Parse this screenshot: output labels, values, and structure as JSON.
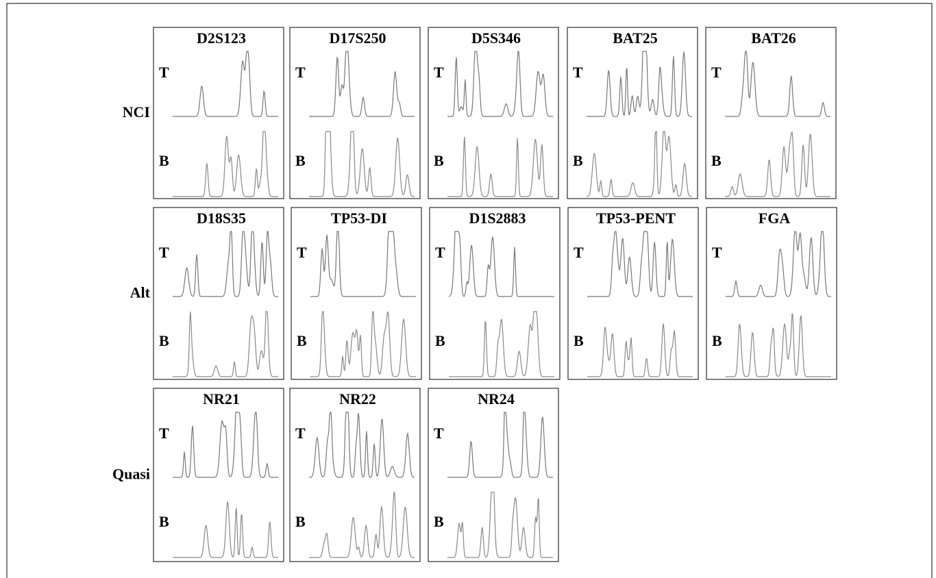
{
  "rows": [
    {
      "label": "NCI",
      "panels": [
        {
          "title": "D2S123",
          "tracks": [
            "T",
            "B"
          ]
        },
        {
          "title": "D17S250",
          "tracks": [
            "T",
            "B"
          ]
        },
        {
          "title": "D5S346",
          "tracks": [
            "T",
            "B"
          ]
        },
        {
          "title": "BAT25",
          "tracks": [
            "T",
            "B"
          ]
        },
        {
          "title": "BAT26",
          "tracks": [
            "T",
            "B"
          ]
        }
      ]
    },
    {
      "label": "Alt",
      "panels": [
        {
          "title": "D18S35",
          "tracks": [
            "T",
            "B"
          ]
        },
        {
          "title": "TP53-DI",
          "tracks": [
            "T",
            "B"
          ]
        },
        {
          "title": "D1S2883",
          "tracks": [
            "T",
            "B"
          ]
        },
        {
          "title": "TP53-PENT",
          "tracks": [
            "T",
            "B"
          ]
        },
        {
          "title": "FGA",
          "tracks": [
            "T",
            "B"
          ]
        }
      ]
    },
    {
      "label": "Quasi",
      "panels": [
        {
          "title": "NR21",
          "tracks": [
            "T",
            "B"
          ]
        },
        {
          "title": "NR22",
          "tracks": [
            "T",
            "B"
          ]
        },
        {
          "title": "NR24",
          "tracks": [
            "T",
            "B"
          ]
        }
      ]
    }
  ]
}
